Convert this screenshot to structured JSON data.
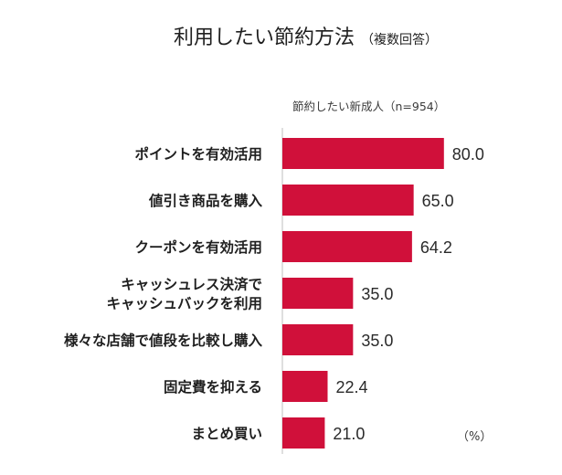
{
  "chart_data": {
    "type": "bar",
    "orientation": "horizontal",
    "title": "利用したい節約方法",
    "title_note": "（複数回答）",
    "series": [
      {
        "name": "節約したい新成人（n=954）",
        "values": [
          80.0,
          65.0,
          64.2,
          35.0,
          35.0,
          22.4,
          21.0
        ]
      }
    ],
    "categories": [
      [
        "ポイントを有効活用"
      ],
      [
        "値引き商品を購入"
      ],
      [
        "クーポンを有効活用"
      ],
      [
        "キャッシュレス決済で",
        "キャッシュバックを利用"
      ],
      [
        "様々な店舗で値段を比較し購入"
      ],
      [
        "固定費を抑える"
      ],
      [
        "まとめ買い"
      ]
    ],
    "value_labels": [
      "80.0",
      "65.0",
      "64.2",
      "35.0",
      "35.0",
      "22.4",
      "21.0"
    ],
    "unit_label": "（%）",
    "xlim": [
      0,
      100
    ],
    "grid": false,
    "bar_color": "#d0103a"
  }
}
